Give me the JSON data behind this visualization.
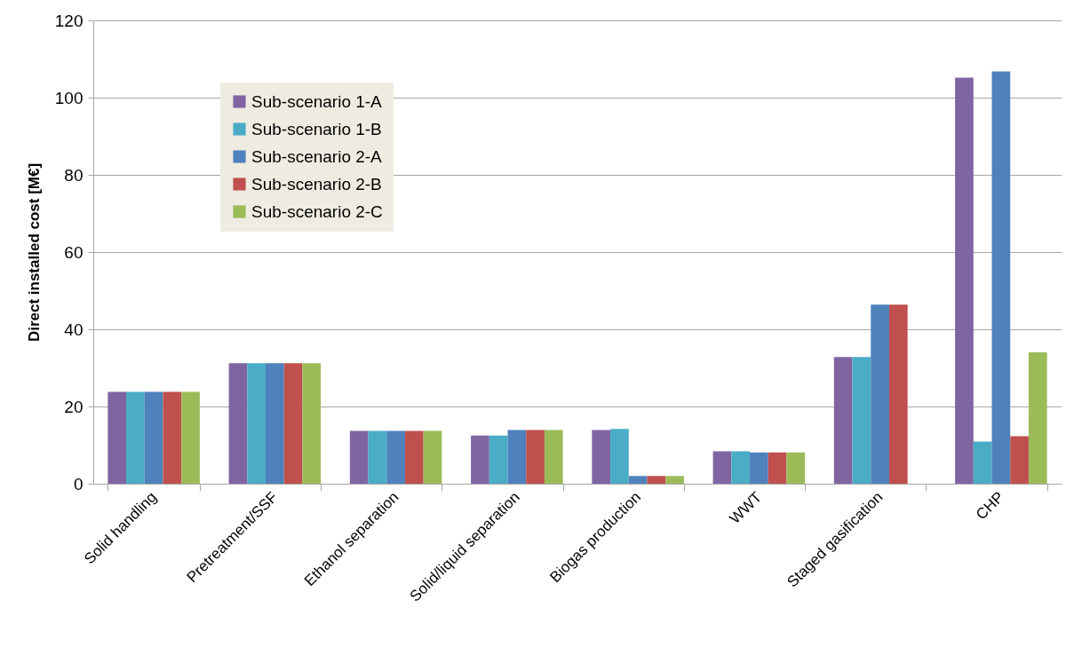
{
  "chart_data": {
    "type": "bar",
    "ylabel": "Direct installed cost [M€]",
    "categories": [
      "Solid handling",
      "Pretreatment/SSF",
      "Ethanol separation",
      "Solid/liquid separation",
      "Biogas production",
      "WWT",
      "Staged gasification",
      "CHP"
    ],
    "series": [
      {
        "name": "Sub-scenario 1-A",
        "color": "#8064a2",
        "values": [
          23.8,
          31.2,
          13.7,
          12.5,
          13.9,
          8.4,
          32.8,
          105.2
        ]
      },
      {
        "name": "Sub-scenario 1-B",
        "color": "#4bacc6",
        "values": [
          23.8,
          31.2,
          13.7,
          12.5,
          14.2,
          8.4,
          32.8,
          10.9
        ]
      },
      {
        "name": "Sub-scenario 2-A",
        "color": "#4f81bd",
        "values": [
          23.8,
          31.2,
          13.7,
          13.9,
          2.0,
          8.1,
          46.4,
          106.8
        ]
      },
      {
        "name": "Sub-scenario 2-B",
        "color": "#c0504d",
        "values": [
          23.8,
          31.2,
          13.7,
          13.9,
          2.0,
          8.1,
          46.4,
          12.3
        ]
      },
      {
        "name": "Sub-scenario 2-C",
        "color": "#9bbb59",
        "values": [
          23.8,
          31.2,
          13.7,
          13.9,
          2.0,
          8.1,
          null,
          34.0
        ]
      }
    ],
    "ylim": [
      0,
      120
    ],
    "yticks": [
      0,
      20,
      40,
      60,
      80,
      100,
      120
    ],
    "grid": "y",
    "legend": "top left"
  }
}
